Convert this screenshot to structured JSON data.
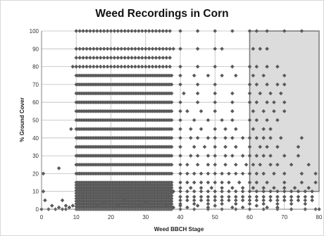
{
  "chart_data": {
    "type": "scatter",
    "title": "Weed Recordings in Corn",
    "xlabel": "Weed BBCH Stage",
    "ylabel": "% Ground Cover",
    "xlim": [
      0,
      80
    ],
    "ylim": [
      0,
      100
    ],
    "xticks": [
      0,
      10,
      20,
      30,
      40,
      50,
      60,
      70,
      80
    ],
    "yticks": [
      0,
      10,
      20,
      30,
      40,
      50,
      60,
      70,
      80,
      90,
      100
    ],
    "grid": true,
    "legend": "none",
    "marker": "diamond",
    "marker_color": "#595959",
    "highlight_region": {
      "x": [
        60,
        80
      ],
      "y": [
        10,
        100
      ],
      "fill": "#dcdcdc",
      "stroke": "#7f7f7f"
    },
    "series": [
      {
        "points": [
          [
            0,
            0
          ],
          [
            1,
            5
          ],
          [
            2,
            0
          ],
          [
            3,
            2
          ],
          [
            4,
            0
          ],
          [
            5,
            1
          ],
          [
            6,
            0
          ],
          [
            7,
            0
          ],
          [
            8,
            1
          ],
          [
            9,
            2
          ],
          [
            0.5,
            10
          ],
          [
            0.5,
            20
          ],
          [
            5,
            23
          ],
          [
            6,
            5
          ],
          [
            7,
            2
          ],
          [
            9,
            80
          ],
          [
            10,
            80
          ],
          [
            8.5,
            45
          ],
          [
            10,
            25
          ],
          [
            11,
            20
          ],
          [
            15,
            3
          ],
          [
            16,
            2
          ],
          [
            18,
            4
          ],
          [
            20,
            3
          ],
          [
            22,
            2
          ],
          [
            24,
            5
          ],
          [
            26,
            3
          ],
          [
            28,
            2
          ],
          [
            30,
            4
          ],
          [
            33,
            3
          ],
          [
            36,
            2
          ],
          [
            38,
            1
          ],
          [
            40,
            2
          ],
          [
            42,
            1
          ],
          [
            45,
            2
          ],
          [
            48,
            1
          ],
          [
            50,
            2
          ],
          [
            55,
            1
          ],
          [
            58,
            1
          ],
          [
            62,
            2
          ],
          [
            65,
            1
          ],
          [
            68,
            1
          ],
          [
            72,
            0
          ],
          [
            76,
            0
          ],
          [
            79,
            0
          ],
          [
            40,
            100
          ],
          [
            45,
            100
          ],
          [
            50,
            100
          ],
          [
            55,
            100
          ],
          [
            60,
            100
          ],
          [
            62,
            100
          ],
          [
            65,
            100
          ],
          [
            70,
            100
          ],
          [
            75,
            100
          ],
          [
            38,
            90
          ],
          [
            40,
            90
          ],
          [
            45,
            90
          ],
          [
            50,
            90
          ],
          [
            52,
            90
          ],
          [
            61,
            90
          ],
          [
            63,
            90
          ],
          [
            65,
            90
          ],
          [
            40,
            80
          ],
          [
            45,
            80
          ],
          [
            50,
            80
          ],
          [
            55,
            80
          ],
          [
            60,
            80
          ],
          [
            62,
            80
          ],
          [
            65,
            80
          ],
          [
            68,
            80
          ],
          [
            40,
            75
          ],
          [
            44,
            75
          ],
          [
            48,
            75
          ],
          [
            52,
            75
          ],
          [
            56,
            75
          ],
          [
            61,
            75
          ],
          [
            64,
            75
          ],
          [
            70,
            75
          ],
          [
            40,
            70
          ],
          [
            45,
            70
          ],
          [
            50,
            70
          ],
          [
            60,
            70
          ],
          [
            62,
            70
          ],
          [
            65,
            70
          ],
          [
            68,
            70
          ],
          [
            70,
            70
          ],
          [
            41,
            65
          ],
          [
            45,
            65
          ],
          [
            50,
            65
          ],
          [
            55,
            65
          ],
          [
            60,
            65
          ],
          [
            63,
            65
          ],
          [
            66,
            65
          ],
          [
            69,
            65
          ],
          [
            40,
            60
          ],
          [
            45,
            60
          ],
          [
            50,
            60
          ],
          [
            55,
            60
          ],
          [
            60,
            60
          ],
          [
            62,
            60
          ],
          [
            65,
            60
          ],
          [
            67,
            60
          ],
          [
            70,
            60
          ],
          [
            40,
            55
          ],
          [
            42,
            55
          ],
          [
            46,
            55
          ],
          [
            50,
            55
          ],
          [
            55,
            55
          ],
          [
            61,
            55
          ],
          [
            64,
            55
          ],
          [
            67,
            55
          ],
          [
            70,
            55
          ],
          [
            40,
            50
          ],
          [
            44,
            50
          ],
          [
            48,
            50
          ],
          [
            52,
            50
          ],
          [
            55,
            50
          ],
          [
            60,
            50
          ],
          [
            62,
            50
          ],
          [
            65,
            50
          ],
          [
            68,
            50
          ],
          [
            40,
            45
          ],
          [
            43,
            45
          ],
          [
            46,
            45
          ],
          [
            50,
            45
          ],
          [
            53,
            45
          ],
          [
            56,
            45
          ],
          [
            61,
            45
          ],
          [
            64,
            45
          ],
          [
            66,
            45
          ],
          [
            40,
            40
          ],
          [
            43,
            40
          ],
          [
            45,
            40
          ],
          [
            48,
            40
          ],
          [
            50,
            40
          ],
          [
            53,
            40
          ],
          [
            55,
            40
          ],
          [
            58,
            40
          ],
          [
            60,
            40
          ],
          [
            62,
            40
          ],
          [
            64,
            40
          ],
          [
            66,
            40
          ],
          [
            69,
            40
          ],
          [
            75,
            40
          ],
          [
            40,
            35
          ],
          [
            44,
            35
          ],
          [
            47,
            35
          ],
          [
            50,
            35
          ],
          [
            53,
            35
          ],
          [
            56,
            35
          ],
          [
            60,
            35
          ],
          [
            63,
            35
          ],
          [
            65,
            35
          ],
          [
            68,
            35
          ],
          [
            74,
            35
          ],
          [
            40,
            30
          ],
          [
            43,
            30
          ],
          [
            45,
            30
          ],
          [
            48,
            30
          ],
          [
            50,
            30
          ],
          [
            53,
            30
          ],
          [
            55,
            30
          ],
          [
            58,
            30
          ],
          [
            60,
            30
          ],
          [
            62,
            30
          ],
          [
            64,
            30
          ],
          [
            66,
            30
          ],
          [
            70,
            30
          ],
          [
            74,
            30
          ],
          [
            40,
            25
          ],
          [
            42,
            25
          ],
          [
            45,
            25
          ],
          [
            48,
            25
          ],
          [
            50,
            25
          ],
          [
            53,
            25
          ],
          [
            56,
            25
          ],
          [
            59,
            25
          ],
          [
            61,
            25
          ],
          [
            63,
            25
          ],
          [
            66,
            25
          ],
          [
            68,
            25
          ],
          [
            72,
            25
          ],
          [
            77,
            25
          ],
          [
            40,
            20
          ],
          [
            42,
            20
          ],
          [
            44,
            20
          ],
          [
            46,
            20
          ],
          [
            48,
            20
          ],
          [
            50,
            20
          ],
          [
            52,
            20
          ],
          [
            54,
            20
          ],
          [
            56,
            20
          ],
          [
            58,
            20
          ],
          [
            60,
            20
          ],
          [
            62,
            20
          ],
          [
            64,
            20
          ],
          [
            67,
            20
          ],
          [
            70,
            20
          ],
          [
            75,
            20
          ],
          [
            79,
            20
          ],
          [
            40,
            15
          ],
          [
            42,
            15
          ],
          [
            44,
            15
          ],
          [
            46,
            15
          ],
          [
            48,
            15
          ],
          [
            50,
            15
          ],
          [
            52,
            15
          ],
          [
            54,
            15
          ],
          [
            57,
            15
          ],
          [
            60,
            15
          ],
          [
            62,
            15
          ],
          [
            65,
            15
          ],
          [
            70,
            15
          ],
          [
            75,
            15
          ],
          [
            79,
            15
          ],
          [
            40,
            12
          ],
          [
            43,
            12
          ],
          [
            46,
            12
          ],
          [
            49,
            12
          ],
          [
            52,
            12
          ],
          [
            55,
            12
          ],
          [
            58,
            12
          ],
          [
            61,
            12
          ],
          [
            64,
            12
          ],
          [
            67,
            12
          ],
          [
            70,
            12
          ],
          [
            73,
            12
          ],
          [
            77,
            12
          ],
          [
            38,
            10
          ],
          [
            40,
            10
          ],
          [
            42,
            10
          ],
          [
            44,
            10
          ],
          [
            46,
            10
          ],
          [
            48,
            10
          ],
          [
            50,
            10
          ],
          [
            52,
            10
          ],
          [
            54,
            10
          ],
          [
            56,
            10
          ],
          [
            58,
            10
          ],
          [
            60,
            10
          ],
          [
            62,
            10
          ],
          [
            64,
            10
          ],
          [
            66,
            10
          ],
          [
            68,
            10
          ],
          [
            70,
            10
          ],
          [
            72,
            10
          ],
          [
            74,
            10
          ],
          [
            76,
            10
          ],
          [
            78,
            10
          ],
          [
            40,
            7
          ],
          [
            42,
            7
          ],
          [
            44,
            7
          ],
          [
            46,
            7
          ],
          [
            48,
            7
          ],
          [
            50,
            7
          ],
          [
            52,
            7
          ],
          [
            54,
            7
          ],
          [
            56,
            7
          ],
          [
            58,
            7
          ],
          [
            60,
            7
          ],
          [
            62,
            7
          ],
          [
            64,
            7
          ],
          [
            66,
            7
          ],
          [
            68,
            7
          ],
          [
            70,
            7
          ],
          [
            72,
            7
          ],
          [
            74,
            7
          ],
          [
            76,
            7
          ],
          [
            78,
            7
          ],
          [
            40,
            5
          ],
          [
            42,
            5
          ],
          [
            44,
            5
          ],
          [
            46,
            5
          ],
          [
            48,
            5
          ],
          [
            50,
            5
          ],
          [
            52,
            5
          ],
          [
            54,
            5
          ],
          [
            56,
            5
          ],
          [
            58,
            5
          ],
          [
            60,
            5
          ],
          [
            62,
            5
          ],
          [
            64,
            5
          ],
          [
            66,
            5
          ],
          [
            68,
            5
          ],
          [
            70,
            5
          ],
          [
            72,
            5
          ],
          [
            74,
            5
          ],
          [
            76,
            5
          ],
          [
            78,
            5
          ],
          [
            40,
            3
          ],
          [
            44,
            3
          ],
          [
            48,
            3
          ],
          [
            52,
            3
          ],
          [
            56,
            3
          ],
          [
            60,
            3
          ],
          [
            64,
            3
          ],
          [
            68,
            3
          ],
          [
            72,
            3
          ],
          [
            76,
            3
          ],
          [
            40,
            0
          ],
          [
            44,
            0
          ],
          [
            48,
            0
          ],
          [
            52,
            0
          ],
          [
            56,
            0
          ],
          [
            60,
            0
          ],
          [
            64,
            0
          ],
          [
            68,
            0
          ],
          [
            72,
            0
          ],
          [
            76,
            0
          ],
          [
            80,
            0
          ]
        ]
      }
    ],
    "dense_columns": {
      "x_start": 10,
      "x_end": 37.5,
      "x_step": 0.5,
      "levels": [
        100,
        90,
        85,
        80,
        75,
        70,
        65,
        60,
        55,
        50,
        45,
        40,
        35,
        30,
        25,
        20
      ],
      "low_band": [
        0,
        15
      ]
    }
  }
}
